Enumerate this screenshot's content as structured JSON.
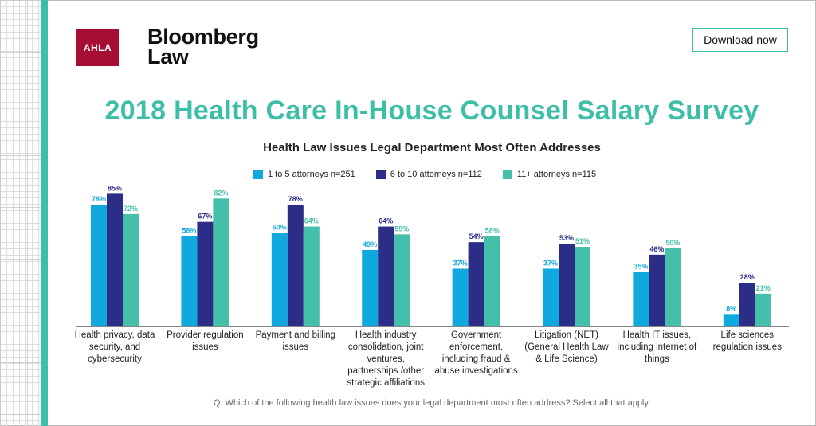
{
  "header": {
    "ahla_logo": "AHLA",
    "bloomberg_logo_line1": "Bloomberg",
    "bloomberg_logo_line2": "Law",
    "download_label": "Download now"
  },
  "title": "2018 Health Care In-House Counsel Salary Survey",
  "footnote": "Q. Which of the following health law issues does your legal department most often address? Select all that apply.",
  "colors": {
    "s1": "#0fa9e0",
    "s2": "#2b2d86",
    "s3": "#44bfa9"
  },
  "chart_data": {
    "type": "bar",
    "title": "Health Law Issues Legal Department Most Often Addresses",
    "legend_placement": "top",
    "ylim": [
      0,
      100
    ],
    "grid": false,
    "categories": [
      "Health privacy, data security, and cybersecurity",
      "Provider regulation issues",
      "Payment and billing issues",
      "Health industry consolidation, joint ventures, partnerships /other strategic affiliations",
      "Government enforcement, including fraud & abuse investigations",
      "Litigation (NET) (General Health Law & Life Science)",
      "Health IT issues, including internet of things",
      "Life sciences regulation issues"
    ],
    "series": [
      {
        "name": "1 to 5 attorneys n=251",
        "values": [
          78,
          58,
          60,
          49,
          37,
          37,
          35,
          8
        ]
      },
      {
        "name": "6 to 10 attorneys n=112",
        "values": [
          85,
          67,
          78,
          64,
          54,
          53,
          46,
          28
        ]
      },
      {
        "name": "11+ attorneys n=115",
        "values": [
          72,
          82,
          64,
          59,
          58,
          51,
          50,
          21
        ]
      }
    ]
  }
}
